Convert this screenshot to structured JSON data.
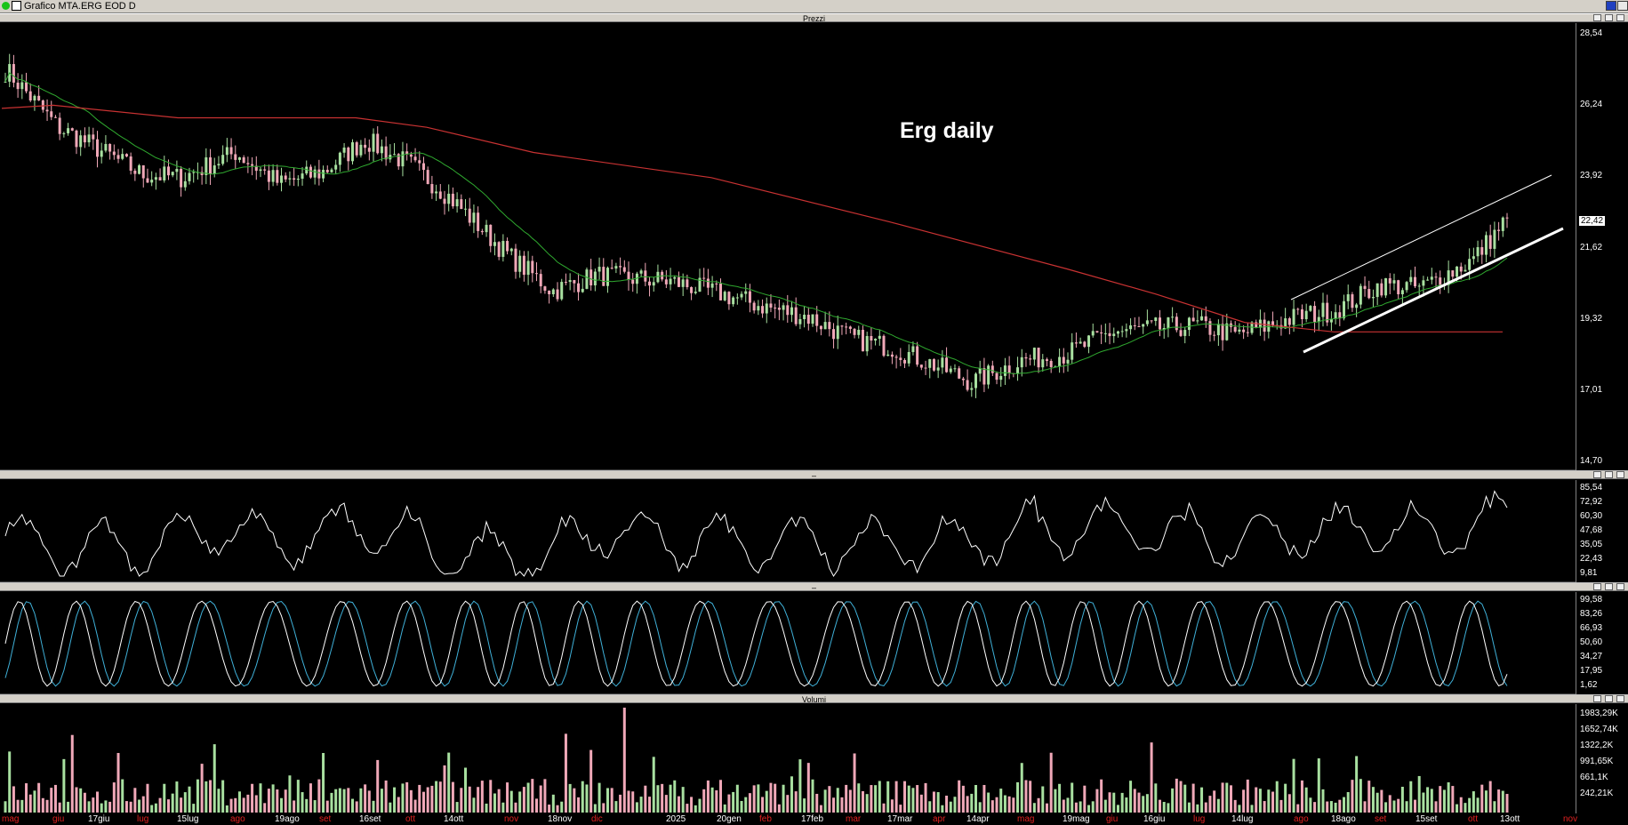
{
  "window": {
    "title": "Grafico MTA.ERG EOD D"
  },
  "panels": {
    "prices": {
      "title": "Prezzi",
      "annotation": "Erg daily",
      "ticks": [
        "28,54",
        "26,24",
        "23,92",
        "21,62",
        "19,32",
        "17,01",
        "14,70"
      ],
      "last": "22,42"
    },
    "oscillator1": {
      "title": "",
      "ticks": [
        "85,54",
        "72,92",
        "60,30",
        "47,68",
        "35,05",
        "22,43",
        "9,81"
      ]
    },
    "oscillator2": {
      "title": "",
      "ticks": [
        "99,58",
        "83,26",
        "66,93",
        "50,60",
        "34,27",
        "17,95",
        "1,62"
      ]
    },
    "volume": {
      "title": "Volumi",
      "ticks": [
        "1983,29K",
        "1652,74K",
        "1322,2K",
        "991,65K",
        "661,1K",
        "242,21K"
      ]
    }
  },
  "xaxis": {
    "labels": [
      {
        "t": "mag",
        "red": true
      },
      {
        "t": "giu",
        "red": true
      },
      {
        "t": "17giu",
        "red": false
      },
      {
        "t": "lug",
        "red": true
      },
      {
        "t": "15lug",
        "red": false
      },
      {
        "t": "ago",
        "red": true
      },
      {
        "t": "19ago",
        "red": false
      },
      {
        "t": "set",
        "red": true
      },
      {
        "t": "16set",
        "red": false
      },
      {
        "t": "ott",
        "red": true
      },
      {
        "t": "14ott",
        "red": false
      },
      {
        "t": "nov",
        "red": true
      },
      {
        "t": "18nov",
        "red": false
      },
      {
        "t": "dic",
        "red": true
      },
      {
        "t": "2025",
        "red": false
      },
      {
        "t": "20gen",
        "red": false
      },
      {
        "t": "feb",
        "red": true
      },
      {
        "t": "17feb",
        "red": false
      },
      {
        "t": "mar",
        "red": true
      },
      {
        "t": "17mar",
        "red": false
      },
      {
        "t": "apr",
        "red": true
      },
      {
        "t": "14apr",
        "red": false
      },
      {
        "t": "mag",
        "red": true
      },
      {
        "t": "19mag",
        "red": false
      },
      {
        "t": "giu",
        "red": true
      },
      {
        "t": "16giu",
        "red": false
      },
      {
        "t": "lug",
        "red": true
      },
      {
        "t": "14lug",
        "red": false
      },
      {
        "t": "ago",
        "red": true
      },
      {
        "t": "18ago",
        "red": false
      },
      {
        "t": "set",
        "red": true
      },
      {
        "t": "15set",
        "red": false
      },
      {
        "t": "ott",
        "red": true
      },
      {
        "t": "13ott",
        "red": false
      },
      {
        "t": "nov",
        "red": true
      }
    ]
  },
  "chart_data": {
    "type": "candlestick",
    "ylim": [
      14.7,
      28.54
    ],
    "anchors": [
      {
        "x": "mag",
        "close": 27.2
      },
      {
        "x": "giu",
        "close": 25.4
      },
      {
        "x": "17giu",
        "close": 24.8
      },
      {
        "x": "lug",
        "close": 23.9
      },
      {
        "x": "15lug",
        "close": 23.8
      },
      {
        "x": "ago",
        "close": 24.6
      },
      {
        "x": "19ago",
        "close": 23.6
      },
      {
        "x": "set",
        "close": 24.0
      },
      {
        "x": "16set",
        "close": 25.0
      },
      {
        "x": "ott",
        "close": 24.2
      },
      {
        "x": "14ott",
        "close": 23.2
      },
      {
        "x": "nov",
        "close": 21.3
      },
      {
        "x": "18nov",
        "close": 20.2
      },
      {
        "x": "dic",
        "close": 20.7
      },
      {
        "x": "2025",
        "close": 20.5
      },
      {
        "x": "20gen",
        "close": 20.1
      },
      {
        "x": "feb",
        "close": 19.7
      },
      {
        "x": "17feb",
        "close": 19.4
      },
      {
        "x": "mar",
        "close": 18.7
      },
      {
        "x": "17mar",
        "close": 18.4
      },
      {
        "x": "apr",
        "close": 17.8
      },
      {
        "x": "14apr",
        "close": 17.3
      },
      {
        "x": "mag",
        "close": 18.0
      },
      {
        "x": "19mag",
        "close": 18.2
      },
      {
        "x": "giu",
        "close": 18.9
      },
      {
        "x": "16giu",
        "close": 19.0
      },
      {
        "x": "lug",
        "close": 19.1
      },
      {
        "x": "14lug",
        "close": 18.8
      },
      {
        "x": "ago",
        "close": 19.4
      },
      {
        "x": "18ago",
        "close": 19.6
      },
      {
        "x": "set",
        "close": 20.4
      },
      {
        "x": "15set",
        "close": 20.3
      },
      {
        "x": "ott",
        "close": 21.2
      },
      {
        "x": "13ott",
        "close": 22.42
      }
    ],
    "ma_long_color": "#c83232",
    "ma_short_color": "#2fa82f",
    "osc_color": "#ffffff",
    "stoch_colors": [
      "#ffffff",
      "#3fb0d8"
    ],
    "vol_up_color": "#a8e0a0",
    "vol_down_color": "#f0a8b8",
    "candle_up": "#a8e0a0",
    "candle_down": "#f0a8b8"
  }
}
